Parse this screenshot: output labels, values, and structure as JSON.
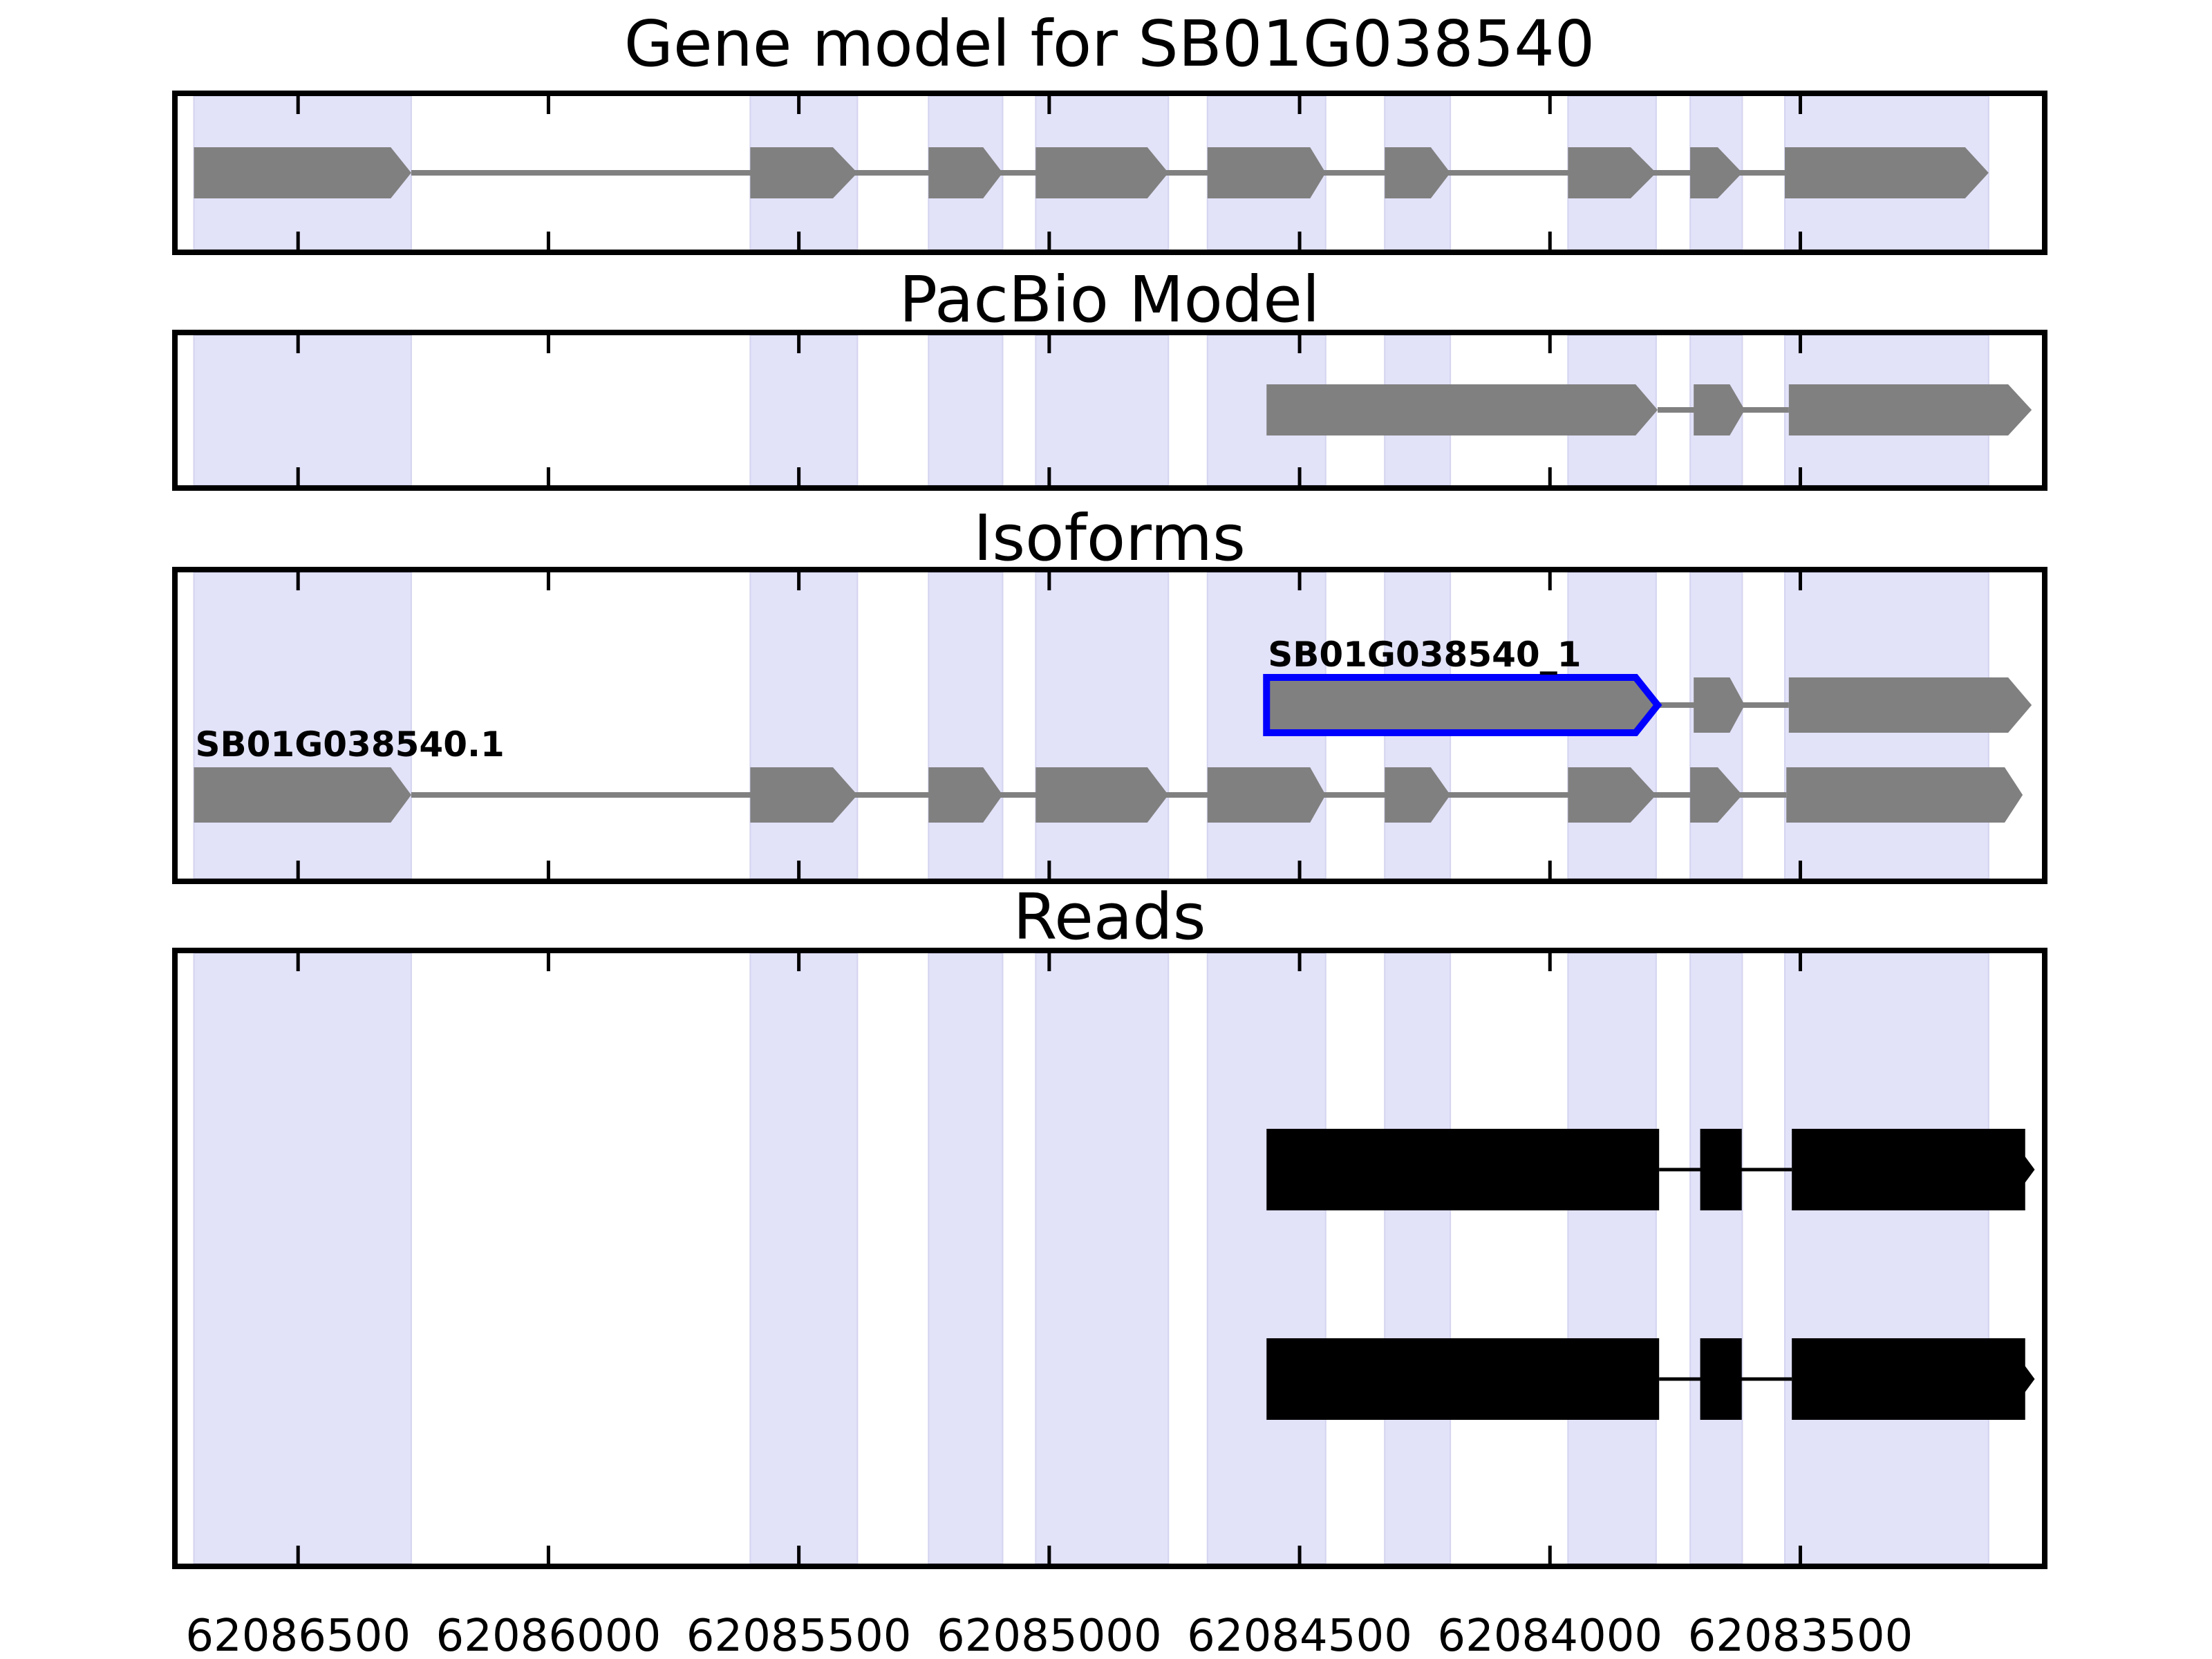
{
  "colors": {
    "background": "#ffffff",
    "exon_fill": "#808080",
    "connector": "#808080",
    "band_fill": "#e2e2f9",
    "band_edge": "#d4d4f0",
    "read_fill": "#000000",
    "highlight_stroke": "#0000ff",
    "axis_color": "#000000",
    "text_color": "#000000"
  },
  "chart_data": {
    "type": "table",
    "subtype": "genomic-feature-tracks",
    "title": "Gene model for SB01G038540",
    "gene_id": "SB01G038540",
    "axis": {
      "xlim_left": 62086746,
      "xlim_right": 62083012,
      "reversed": true,
      "tick_values": [
        62086500,
        62086000,
        62085500,
        62085000,
        62084500,
        62084000,
        62083500
      ],
      "tick_labels": [
        "62086500",
        "62086000",
        "62085500",
        "62085000",
        "62084500",
        "62084000",
        "62083500"
      ]
    },
    "panels": [
      {
        "key": "gene_model",
        "title": "Gene model for SB01G038540"
      },
      {
        "key": "pacbio",
        "title": "PacBio Model"
      },
      {
        "key": "isoforms",
        "title": "Isoforms"
      },
      {
        "key": "reads",
        "title": "Reads"
      }
    ],
    "highlight_bands_source": "gene_model",
    "gene_model": {
      "exons": [
        {
          "start": 62086708,
          "end": 62086315,
          "tip": 62086274
        },
        {
          "start": 62085597,
          "end": 62085432,
          "tip": 62085383
        },
        {
          "start": 62085241,
          "end": 62085132,
          "tip": 62085093
        },
        {
          "start": 62085027,
          "end": 62084804,
          "tip": 62084762
        },
        {
          "start": 62084684,
          "end": 62084479,
          "tip": 62084448
        },
        {
          "start": 62084330,
          "end": 62084238,
          "tip": 62084199
        },
        {
          "start": 62083964,
          "end": 62083839,
          "tip": 62083788
        },
        {
          "start": 62083720,
          "end": 62083665,
          "tip": 62083616
        },
        {
          "start": 62083531,
          "end": 62083171,
          "tip": 62083124
        }
      ]
    },
    "pacbio": {
      "exons": [
        {
          "start": 62084566,
          "end": 62083829,
          "tip": 62083785
        },
        {
          "start": 62083713,
          "end": 62083641,
          "tip": 62083611
        },
        {
          "start": 62083523,
          "end": 62083085,
          "tip": 62083038
        }
      ]
    },
    "isoforms": [
      {
        "label": "SB01G038540_1",
        "highlight_first_exon": true,
        "exons": [
          {
            "start": 62084566,
            "end": 62083829,
            "tip": 62083785
          },
          {
            "start": 62083713,
            "end": 62083641,
            "tip": 62083611
          },
          {
            "start": 62083523,
            "end": 62083085,
            "tip": 62083038
          }
        ]
      },
      {
        "label": "SB01G038540.1",
        "highlight_first_exon": false,
        "exons": [
          {
            "start": 62086708,
            "end": 62086315,
            "tip": 62086274
          },
          {
            "start": 62085597,
            "end": 62085432,
            "tip": 62085383
          },
          {
            "start": 62085241,
            "end": 62085132,
            "tip": 62085093
          },
          {
            "start": 62085027,
            "end": 62084804,
            "tip": 62084762
          },
          {
            "start": 62084684,
            "end": 62084479,
            "tip": 62084448
          },
          {
            "start": 62084330,
            "end": 62084238,
            "tip": 62084199
          },
          {
            "start": 62083964,
            "end": 62083839,
            "tip": 62083788
          },
          {
            "start": 62083720,
            "end": 62083665,
            "tip": 62083616
          },
          {
            "start": 62083528,
            "end": 62083092,
            "tip": 62083056
          }
        ]
      }
    ],
    "reads": [
      {
        "blocks": [
          {
            "start": 62084566,
            "end": 62083782
          },
          {
            "start": 62083700,
            "end": 62083617
          },
          {
            "start": 62083517,
            "end": 62083051
          }
        ],
        "tip": 62083032
      },
      {
        "blocks": [
          {
            "start": 62084566,
            "end": 62083782
          },
          {
            "start": 62083700,
            "end": 62083617
          },
          {
            "start": 62083517,
            "end": 62083051
          }
        ],
        "tip": 62083032
      }
    ]
  }
}
